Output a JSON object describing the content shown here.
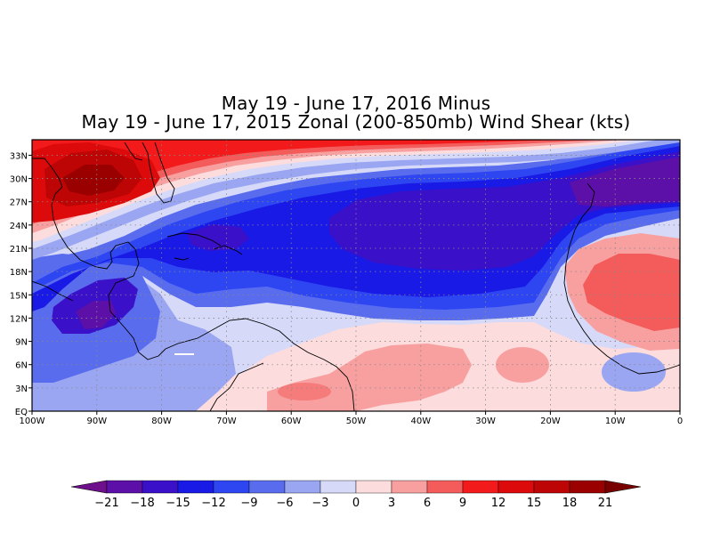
{
  "title": {
    "line1": "May 19 - June 17, 2016 Minus",
    "line2": "May 19 - June 17, 2015 Zonal (200-850mb) Wind Shear (kts)"
  },
  "map": {
    "lon_range": [
      -100,
      0
    ],
    "lat_range": [
      0,
      35
    ],
    "grid": "dotted",
    "x_ticks": [
      {
        "value": -100,
        "label": "100W"
      },
      {
        "value": -90,
        "label": "90W"
      },
      {
        "value": -80,
        "label": "80W"
      },
      {
        "value": -70,
        "label": "70W"
      },
      {
        "value": -60,
        "label": "60W"
      },
      {
        "value": -50,
        "label": "50W"
      },
      {
        "value": -40,
        "label": "40W"
      },
      {
        "value": -30,
        "label": "30W"
      },
      {
        "value": -20,
        "label": "20W"
      },
      {
        "value": -10,
        "label": "10W"
      },
      {
        "value": 0,
        "label": "0"
      }
    ],
    "y_ticks": [
      {
        "value": 0,
        "label": "EQ"
      },
      {
        "value": 3,
        "label": "3N"
      },
      {
        "value": 6,
        "label": "6N"
      },
      {
        "value": 9,
        "label": "9N"
      },
      {
        "value": 12,
        "label": "12N"
      },
      {
        "value": 15,
        "label": "15N"
      },
      {
        "value": 18,
        "label": "18N"
      },
      {
        "value": 21,
        "label": "21N"
      },
      {
        "value": 24,
        "label": "24N"
      },
      {
        "value": 27,
        "label": "27N"
      },
      {
        "value": 30,
        "label": "30N"
      },
      {
        "value": 33,
        "label": "33N"
      }
    ]
  },
  "colorbar": {
    "labels": [
      "-21",
      "-18",
      "-15",
      "-12",
      "-9",
      "-6",
      "-3",
      "0",
      "3",
      "6",
      "9",
      "12",
      "15",
      "18",
      "21"
    ],
    "colors": [
      "#6e0f8c",
      "#5c10a8",
      "#3a10c8",
      "#1a1ae6",
      "#2e46f2",
      "#5a6cee",
      "#9aa6f2",
      "#d6daf8",
      "#fcdcdc",
      "#f8a0a0",
      "#f45c5c",
      "#f21a1a",
      "#dc0a0a",
      "#be0505",
      "#9a0000",
      "#780000"
    ]
  }
}
